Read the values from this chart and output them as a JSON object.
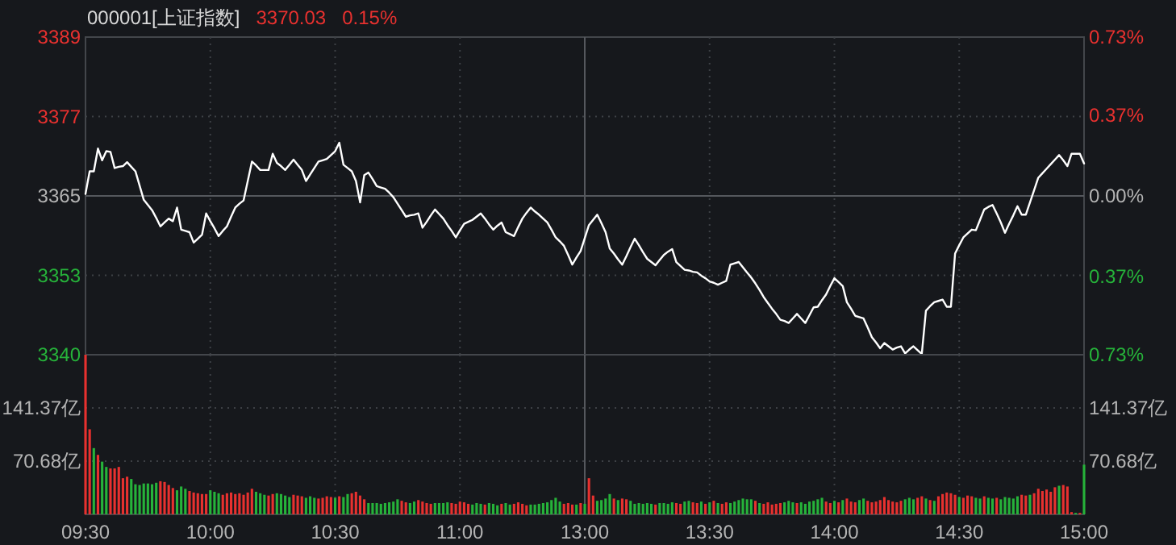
{
  "chart_data": [
    {
      "type": "line",
      "title": "000001[上证指数]",
      "annotations": [
        "3370.03",
        "0.15%"
      ],
      "grid": true,
      "categories": [
        null,
        null,
        null,
        null,
        null,
        null,
        null,
        null,
        null,
        null,
        null,
        null,
        null,
        null,
        null,
        null,
        null,
        null,
        null,
        null,
        null,
        null,
        null,
        null,
        null,
        null,
        null,
        null,
        null,
        null,
        null,
        null,
        null,
        null,
        null,
        null,
        null,
        null,
        null,
        null,
        null,
        null,
        null,
        null,
        null,
        null,
        null,
        null,
        null,
        null,
        null,
        null,
        null,
        null,
        null,
        null,
        null,
        null,
        null,
        null,
        null,
        null,
        null,
        null,
        null,
        null,
        null,
        null,
        null,
        null,
        null,
        null,
        null,
        null,
        null,
        null,
        null,
        null,
        null,
        null,
        null,
        null,
        null,
        null,
        null,
        null,
        null,
        null,
        null,
        null,
        null,
        null,
        null,
        null,
        null,
        null,
        null,
        null,
        null,
        null,
        null,
        null,
        null,
        null,
        null,
        null,
        null,
        null,
        null,
        null,
        null,
        null,
        null,
        null,
        null,
        null,
        null,
        null,
        null,
        null,
        null,
        null,
        null,
        null,
        null,
        null,
        null,
        null,
        null,
        null,
        null,
        null,
        null,
        null,
        null,
        null,
        null,
        null,
        null,
        null,
        null,
        null,
        null,
        null,
        null,
        null,
        null,
        null,
        null,
        null,
        null,
        null,
        null,
        null,
        null,
        null,
        null,
        null,
        null,
        null,
        null,
        null,
        null,
        null,
        null,
        null,
        null,
        null,
        null,
        null,
        null,
        null,
        null,
        null,
        null,
        null,
        null,
        null,
        null,
        null,
        null,
        null,
        null,
        null,
        null,
        null,
        null,
        null,
        null,
        null,
        null,
        null,
        null,
        null,
        null,
        null,
        null,
        null,
        null,
        null,
        null,
        null,
        null,
        null,
        null,
        null,
        null,
        null,
        null,
        null,
        null,
        null,
        null,
        null,
        null,
        null,
        null,
        null,
        null,
        null,
        null,
        null,
        null,
        null,
        null,
        null,
        null,
        null,
        null,
        null,
        null,
        null,
        null,
        null,
        null,
        null,
        null,
        null,
        null,
        null,
        null
      ],
      "ylim": [
        3340.5,
        3389.5
      ],
      "yticks": [
        {
          "value": 3340.5,
          "label": "3340"
        },
        {
          "value": 3352.75,
          "label": "3353"
        },
        {
          "value": 3365,
          "label": "3365"
        },
        {
          "value": 3377.25,
          "label": "3377"
        },
        {
          "value": 3389.5,
          "label": "3389"
        }
      ],
      "y2lim": [
        -0.73,
        0.73
      ],
      "y2ticks": [
        {
          "value": -0.73,
          "label": "0.73%"
        },
        {
          "value": -0.37,
          "label": "0.37%"
        },
        {
          "value": 0,
          "label": "0.00%"
        },
        {
          "value": 0.37,
          "label": "0.37%"
        },
        {
          "value": 0.73,
          "label": "0.73%"
        }
      ],
      "series": [
        {
          "color": "#ffffff",
          "values": [
            3365.3,
            3368.8,
            3368.8,
            3372.3,
            3370.5,
            3371.9,
            3371.8,
            3369.3,
            3369.5,
            3369.6,
            3370.2,
            3369.5,
            3368.8,
            3366.6,
            3364.4,
            3363.6,
            3362.8,
            3361.6,
            3360.3,
            3360.9,
            3361.5,
            3361.1,
            3363.2,
            3359.8,
            3359.6,
            3359.4,
            3357.8,
            3358.4,
            3359.0,
            3362.3,
            3361.1,
            3360.0,
            3358.8,
            3359.6,
            3360.3,
            3361.8,
            3363.2,
            3363.8,
            3364.3,
            3367.3,
            3370.3,
            3369.7,
            3369.0,
            3369.0,
            3369.0,
            3371.5,
            3370.1,
            3369.6,
            3369.0,
            3369.8,
            3370.6,
            3369.8,
            3369.0,
            3367.3,
            3368.3,
            3369.3,
            3370.3,
            3370.5,
            3370.7,
            3371.3,
            3371.9,
            3373.2,
            3369.8,
            3369.3,
            3368.8,
            3367.3,
            3364.0,
            3368.2,
            3368.6,
            3367.6,
            3366.5,
            3366.3,
            3366.1,
            3365.5,
            3364.8,
            3363.8,
            3362.8,
            3361.8,
            3362.0,
            3362.1,
            3362.3,
            3360.1,
            3361.0,
            3362.0,
            3362.9,
            3362.2,
            3361.5,
            3360.5,
            3359.6,
            3358.6,
            3359.7,
            3360.7,
            3361.0,
            3361.3,
            3361.8,
            3362.3,
            3361.5,
            3360.6,
            3359.8,
            3360.4,
            3360.9,
            3359.4,
            3359.1,
            3358.8,
            3360.2,
            3361.5,
            3362.4,
            3363.2,
            3362.6,
            3362.1,
            3361.5,
            3360.9,
            3359.8,
            3358.6,
            3358.0,
            3357.3,
            3355.9,
            3354.4,
            3355.5,
            3356.5,
            3358.5,
            3360.5,
            3361.3,
            3362.1,
            3360.8,
            3359.4,
            3356.9,
            3356.1,
            3355.2,
            3354.4,
            3355.7,
            3357.1,
            3358.4,
            3357.4,
            3356.3,
            3355.3,
            3354.8,
            3354.3,
            3355.1,
            3355.9,
            3356.4,
            3356.8,
            3354.8,
            3354.2,
            3353.6,
            3353.5,
            3353.3,
            3353.2,
            3352.7,
            3352.3,
            3351.8,
            3351.6,
            3351.3,
            3351.6,
            3351.9,
            3354.4,
            3354.6,
            3354.8,
            3354.0,
            3353.2,
            3352.4,
            3351.5,
            3350.5,
            3349.4,
            3348.5,
            3347.6,
            3346.8,
            3345.9,
            3345.7,
            3345.4,
            3346.1,
            3346.8,
            3346.1,
            3345.4,
            3346.6,
            3347.8,
            3347.9,
            3348.9,
            3349.8,
            3351.1,
            3352.3,
            3351.7,
            3351.1,
            3348.6,
            3347.6,
            3346.5,
            3346.3,
            3346.1,
            3344.7,
            3343.2,
            3342.4,
            3341.5,
            3342.3,
            3341.8,
            3341.3,
            3341.6,
            3341.8,
            3340.7,
            3341.3,
            3341.8,
            3341.2,
            3340.6,
            3347.3,
            3348.0,
            3348.6,
            3348.8,
            3349.0,
            3347.9,
            3347.9,
            3356.1,
            3357.4,
            3358.6,
            3359.2,
            3359.8,
            3359.7,
            3361.3,
            3362.9,
            3363.3,
            3363.6,
            3362.3,
            3360.9,
            3359.3,
            3360.7,
            3362.0,
            3363.4,
            3362.1,
            3362.1,
            3364.0,
            3365.9,
            3367.8,
            3368.5,
            3369.2,
            3369.9,
            3370.6,
            3371.3,
            3370.5,
            3369.6,
            3371.5,
            3371.5,
            3371.5,
            3370.0
          ]
        }
      ]
    },
    {
      "type": "bar",
      "grid": true,
      "categories": [
        "09:30",
        null,
        null,
        null,
        null,
        null,
        null,
        null,
        null,
        null,
        null,
        null,
        null,
        null,
        null,
        null,
        null,
        null,
        null,
        null,
        null,
        null,
        null,
        null,
        null,
        null,
        null,
        null,
        null,
        null,
        "10:00",
        null,
        null,
        null,
        null,
        null,
        null,
        null,
        null,
        null,
        null,
        null,
        null,
        null,
        null,
        null,
        null,
        null,
        null,
        null,
        null,
        null,
        null,
        null,
        null,
        null,
        null,
        null,
        null,
        null,
        "10:30",
        null,
        null,
        null,
        null,
        null,
        null,
        null,
        null,
        null,
        null,
        null,
        null,
        null,
        null,
        null,
        null,
        null,
        null,
        null,
        null,
        null,
        null,
        null,
        null,
        null,
        null,
        null,
        null,
        null,
        "11:00",
        null,
        null,
        null,
        null,
        null,
        null,
        null,
        null,
        null,
        null,
        null,
        null,
        null,
        null,
        null,
        null,
        null,
        null,
        null,
        null,
        null,
        null,
        null,
        null,
        null,
        null,
        null,
        null,
        null,
        "13:00",
        null,
        null,
        null,
        null,
        null,
        null,
        null,
        null,
        null,
        null,
        null,
        null,
        null,
        null,
        null,
        null,
        null,
        null,
        null,
        null,
        null,
        null,
        null,
        null,
        null,
        null,
        null,
        null,
        null,
        "13:30",
        null,
        null,
        null,
        null,
        null,
        null,
        null,
        null,
        null,
        null,
        null,
        null,
        null,
        null,
        null,
        null,
        null,
        null,
        null,
        null,
        null,
        null,
        null,
        null,
        null,
        null,
        null,
        null,
        null,
        "14:00",
        null,
        null,
        null,
        null,
        null,
        null,
        null,
        null,
        null,
        null,
        null,
        null,
        null,
        null,
        null,
        null,
        null,
        null,
        null,
        null,
        null,
        null,
        null,
        null,
        null,
        null,
        null,
        null,
        null,
        "14:30",
        null,
        null,
        null,
        null,
        null,
        null,
        null,
        null,
        null,
        null,
        null,
        null,
        null,
        null,
        null,
        null,
        null,
        null,
        null,
        null,
        null,
        null,
        null,
        null,
        null,
        null,
        null,
        null,
        null,
        "15:00"
      ],
      "ylim": [
        0,
        212
      ],
      "yticks": [
        {
          "value": 70.68,
          "label": "70.68亿"
        },
        {
          "value": 141.37,
          "label": "141.37亿"
        }
      ],
      "y2lim": [
        0,
        212
      ],
      "y2ticks": [
        {
          "value": 70.68,
          "label": "70.68亿"
        },
        {
          "value": 141.37,
          "label": "141.37亿"
        }
      ],
      "values": [
        212,
        113,
        88,
        79,
        70,
        63,
        61,
        61,
        63,
        48,
        50,
        47,
        40,
        39,
        41,
        41,
        40,
        42,
        44,
        43,
        39,
        35,
        32,
        37,
        34,
        31,
        29,
        28,
        27,
        27,
        32,
        30,
        28,
        26,
        28,
        29,
        27,
        28,
        26,
        29,
        34,
        30,
        28,
        26,
        25,
        27,
        28,
        27,
        25,
        23,
        26,
        25,
        24,
        22,
        24,
        22,
        21,
        22,
        24,
        23,
        22,
        24,
        23,
        27,
        28,
        30,
        25,
        20,
        15,
        15,
        15,
        14,
        15,
        16,
        17,
        20,
        18,
        16,
        15,
        17,
        19,
        17,
        15,
        14,
        15,
        15,
        15,
        16,
        15,
        14,
        17,
        16,
        14,
        13,
        15,
        14,
        13,
        15,
        14,
        12,
        14,
        15,
        13,
        14,
        16,
        14,
        12,
        13,
        13,
        14,
        15,
        16,
        19,
        22,
        17,
        14,
        15,
        13,
        13,
        15,
        14,
        48,
        25,
        18,
        19,
        21,
        27,
        21,
        19,
        21,
        20,
        18,
        14,
        15,
        14,
        15,
        14,
        13,
        15,
        15,
        14,
        16,
        15,
        14,
        17,
        18,
        16,
        15,
        17,
        14,
        16,
        18,
        15,
        14,
        16,
        15,
        17,
        19,
        21,
        20,
        20,
        18,
        15,
        14,
        16,
        13,
        14,
        15,
        16,
        18,
        16,
        15,
        16,
        14,
        17,
        18,
        20,
        22,
        17,
        15,
        18,
        16,
        19,
        21,
        17,
        16,
        19,
        21,
        18,
        16,
        17,
        19,
        23,
        19,
        17,
        16,
        18,
        20,
        22,
        20,
        22,
        24,
        21,
        19,
        18,
        24,
        27,
        29,
        28,
        26,
        23,
        22,
        25,
        24,
        22,
        21,
        24,
        22,
        21,
        22,
        20,
        23,
        22,
        21,
        24,
        26,
        25,
        26,
        28,
        34,
        31,
        33,
        30,
        36,
        38,
        39,
        37,
        3,
        2,
        2,
        66
      ],
      "colors": [
        "#e8312f",
        "#e8312f",
        "#26b33a",
        "#e8312f",
        "#26b33a",
        "#26b33a",
        "#e8312f",
        "#e8312f",
        "#e8312f",
        "#e8312f",
        "#e8312f",
        "#26b33a",
        "#26b33a",
        "#26b33a",
        "#26b33a",
        "#26b33a",
        "#26b33a",
        "#26b33a",
        "#e8312f",
        "#e8312f",
        "#e8312f",
        "#e8312f",
        "#26b33a",
        "#26b33a",
        "#26b33a",
        "#e8312f",
        "#e8312f",
        "#e8312f",
        "#e8312f",
        "#e8312f",
        "#26b33a",
        "#26b33a",
        "#26b33a",
        "#e8312f",
        "#e8312f",
        "#e8312f",
        "#e8312f",
        "#e8312f",
        "#e8312f",
        "#e8312f",
        "#e8312f",
        "#26b33a",
        "#26b33a",
        "#26b33a",
        "#e8312f",
        "#e8312f",
        "#26b33a",
        "#26b33a",
        "#26b33a",
        "#26b33a",
        "#e8312f",
        "#e8312f",
        "#e8312f",
        "#26b33a",
        "#26b33a",
        "#26b33a",
        "#e8312f",
        "#e8312f",
        "#e8312f",
        "#e8312f",
        "#26b33a",
        "#e8312f",
        "#26b33a",
        "#26b33a",
        "#e8312f",
        "#e8312f",
        "#e8312f",
        "#e8312f",
        "#26b33a",
        "#26b33a",
        "#26b33a",
        "#26b33a",
        "#26b33a",
        "#26b33a",
        "#26b33a",
        "#26b33a",
        "#e8312f",
        "#e8312f",
        "#26b33a",
        "#26b33a",
        "#e8312f",
        "#e8312f",
        "#e8312f",
        "#e8312f",
        "#26b33a",
        "#26b33a",
        "#26b33a",
        "#26b33a",
        "#e8312f",
        "#e8312f",
        "#e8312f",
        "#e8312f",
        "#e8312f",
        "#26b33a",
        "#26b33a",
        "#26b33a",
        "#e8312f",
        "#26b33a",
        "#26b33a",
        "#26b33a",
        "#e8312f",
        "#26b33a",
        "#26b33a",
        "#e8312f",
        "#e8312f",
        "#e8312f",
        "#e8312f",
        "#26b33a",
        "#26b33a",
        "#26b33a",
        "#26b33a",
        "#26b33a",
        "#26b33a",
        "#26b33a",
        "#26b33a",
        "#e8312f",
        "#e8312f",
        "#e8312f",
        "#26b33a",
        "#e8312f",
        "#26b33a",
        "#e8312f",
        "#e8312f",
        "#26b33a",
        "#26b33a",
        "#26b33a",
        "#26b33a",
        "#e8312f",
        "#26b33a",
        "#e8312f",
        "#e8312f",
        "#26b33a",
        "#26b33a",
        "#26b33a",
        "#26b33a",
        "#26b33a",
        "#26b33a",
        "#e8312f",
        "#26b33a",
        "#26b33a",
        "#26b33a",
        "#26b33a",
        "#e8312f",
        "#e8312f",
        "#26b33a",
        "#26b33a",
        "#e8312f",
        "#e8312f",
        "#26b33a",
        "#e8312f",
        "#26b33a",
        "#e8312f",
        "#26b33a",
        "#e8312f",
        "#e8312f",
        "#26b33a",
        "#26b33a",
        "#26b33a",
        "#26b33a",
        "#26b33a",
        "#26b33a",
        "#e8312f",
        "#26b33a",
        "#e8312f",
        "#e8312f",
        "#e8312f",
        "#e8312f",
        "#e8312f",
        "#26b33a",
        "#26b33a",
        "#26b33a",
        "#e8312f",
        "#26b33a",
        "#26b33a",
        "#26b33a",
        "#26b33a",
        "#26b33a",
        "#26b33a",
        "#e8312f",
        "#e8312f",
        "#26b33a",
        "#e8312f",
        "#26b33a",
        "#e8312f",
        "#e8312f",
        "#e8312f",
        "#26b33a",
        "#26b33a",
        "#e8312f",
        "#e8312f",
        "#e8312f",
        "#e8312f",
        "#e8312f",
        "#e8312f",
        "#e8312f",
        "#e8312f",
        "#e8312f",
        "#26b33a",
        "#26b33a",
        "#26b33a",
        "#e8312f",
        "#e8312f",
        "#26b33a",
        "#e8312f",
        "#26b33a",
        "#e8312f",
        "#e8312f",
        "#e8312f",
        "#e8312f",
        "#e8312f",
        "#26b33a",
        "#e8312f",
        "#e8312f",
        "#e8312f",
        "#26b33a",
        "#26b33a",
        "#e8312f",
        "#26b33a",
        "#26b33a",
        "#e8312f",
        "#26b33a",
        "#26b33a",
        "#26b33a",
        "#26b33a",
        "#26b33a",
        "#e8312f",
        "#e8312f",
        "#26b33a",
        "#e8312f",
        "#e8312f",
        "#e8312f",
        "#e8312f",
        "#e8312f",
        "#e8312f",
        "#26b33a",
        "#e8312f",
        "#e8312f",
        "#e8312f",
        "#26b33a",
        "#e8312f",
        "#26b33a"
      ]
    }
  ]
}
